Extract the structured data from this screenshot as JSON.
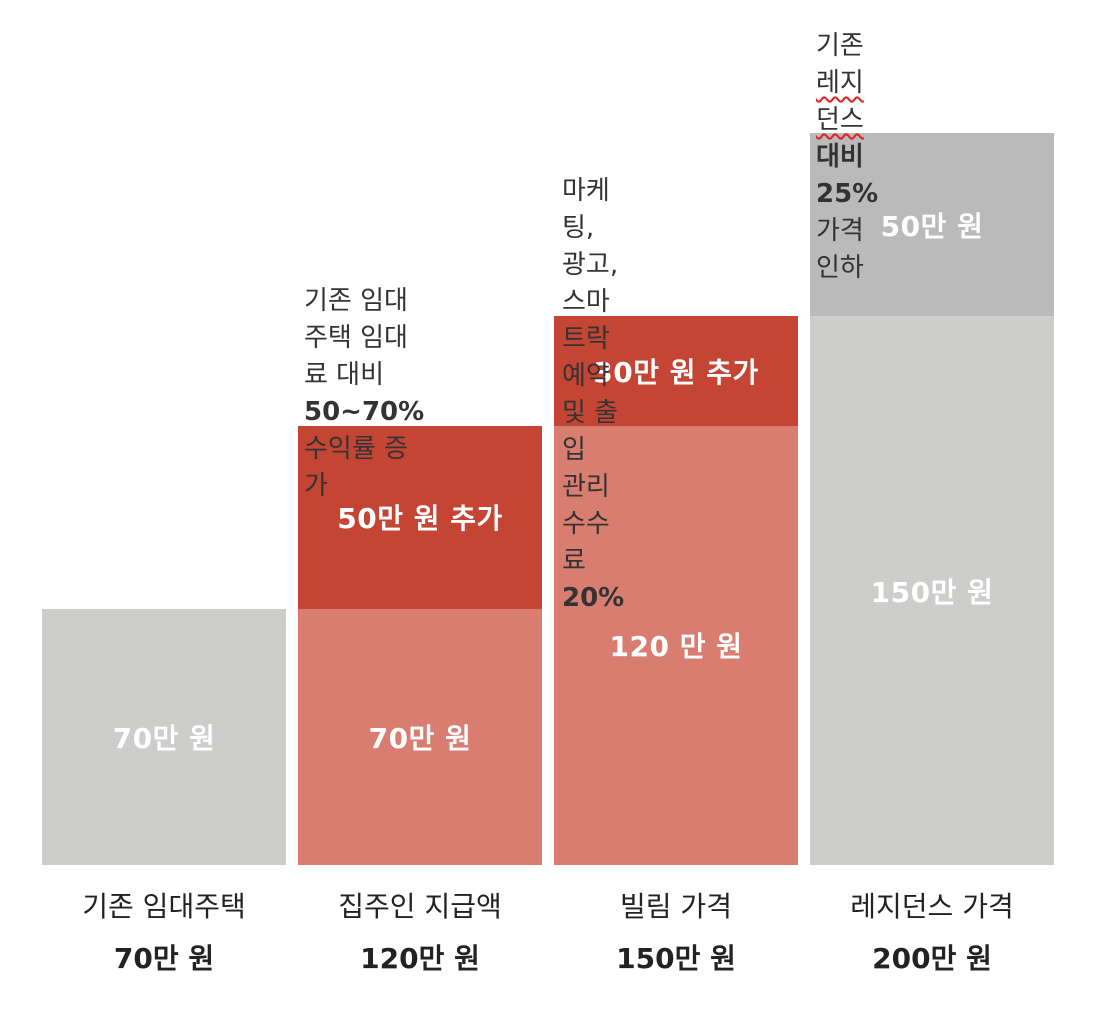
{
  "chart_data": {
    "type": "bar",
    "stacked": true,
    "unit": "만 원",
    "ylim": [
      0,
      200
    ],
    "categories": [
      {
        "name": "기존 임대주택",
        "total_label": "70만 원"
      },
      {
        "name": "집주인 지급액",
        "total_label": "120만 원"
      },
      {
        "name": "빌림 가격",
        "total_label": "150만 원"
      },
      {
        "name": "레지던스 가격",
        "total_label": "200만 원"
      }
    ],
    "segments": [
      [
        {
          "value": 70,
          "label": "70만 원",
          "color": "#cdcdcb"
        }
      ],
      [
        {
          "value": 70,
          "label": "70만 원",
          "color": "#d97d70"
        },
        {
          "value": 50,
          "label": "50만 원 추가",
          "color": "#c54535"
        }
      ],
      [
        {
          "value": 120,
          "label": "120 만 원",
          "color": "#d97d70"
        },
        {
          "value": 30,
          "label": "30만 원 추가",
          "color": "#c54535"
        }
      ],
      [
        {
          "value": 150,
          "label": "150만 원",
          "color": "#cdcdcb"
        },
        {
          "value": 50,
          "label": "50만 원",
          "color": "#bababa"
        }
      ]
    ],
    "annotations": [
      {
        "bar": 1,
        "lines": [
          [
            "기존 임대주택 임대",
            ""
          ],
          [
            "료 대비 ",
            "50~70%"
          ],
          [
            "수익률 증가",
            ""
          ]
        ]
      },
      {
        "bar": 2,
        "lines": [
          [
            "마케팅, 광고, 스마",
            ""
          ],
          [
            "트락 예약 및 출입",
            ""
          ],
          [
            "관리 수수료 ",
            "20%"
          ]
        ]
      },
      {
        "bar": 3,
        "lines": [
          [
            "기존 ",
            "",
            "레지던스",
            " 대비"
          ],
          [
            "",
            "25%",
            " 가격 인하"
          ]
        ]
      }
    ]
  }
}
